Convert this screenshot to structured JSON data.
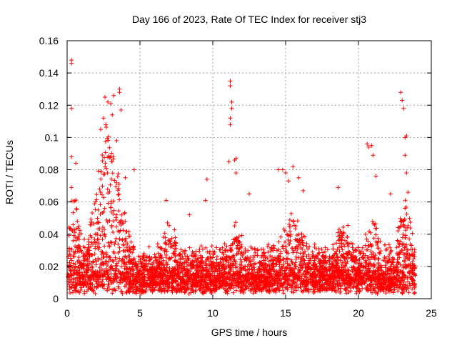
{
  "chart_data": {
    "type": "scatter",
    "title": "Day 166 of 2023, Rate Of TEC Index for receiver stj3",
    "xlabel": "GPS time / hours",
    "ylabel": "ROTI / TECUs",
    "xlim": [
      0,
      25
    ],
    "ylim": [
      0,
      0.16
    ],
    "xticks": [
      0,
      5,
      10,
      15,
      20,
      25
    ],
    "xtick_labels": [
      "0",
      "5",
      "10",
      "15",
      "20",
      "25"
    ],
    "yticks": [
      0,
      0.02,
      0.04,
      0.06,
      0.08,
      0.1,
      0.12,
      0.14,
      0.16
    ],
    "ytick_labels": [
      "0",
      "0.02",
      "0.04",
      "0.06",
      "0.08",
      "0.1",
      "0.12",
      "0.14",
      "0.16"
    ],
    "grid": true,
    "marker": "+",
    "color": "#ff0000",
    "series": [
      {
        "name": "ROTI",
        "notable_points": [
          [
            0.3,
            0.148
          ],
          [
            0.3,
            0.146
          ],
          [
            0.3,
            0.118
          ],
          [
            0.3,
            0.088
          ],
          [
            0.3,
            0.069
          ],
          [
            0.6,
            0.084
          ],
          [
            2.3,
            0.105
          ],
          [
            2.5,
            0.112
          ],
          [
            2.6,
            0.125
          ],
          [
            2.8,
            0.122
          ],
          [
            3.0,
            0.121
          ],
          [
            3.1,
            0.114
          ],
          [
            3.2,
            0.126
          ],
          [
            3.6,
            0.13
          ],
          [
            3.6,
            0.128
          ],
          [
            3.7,
            0.117
          ],
          [
            3.4,
            0.098
          ],
          [
            4.0,
            0.075
          ],
          [
            4.6,
            0.08
          ],
          [
            6.8,
            0.061
          ],
          [
            8.4,
            0.052
          ],
          [
            9.6,
            0.074
          ],
          [
            9.5,
            0.061
          ],
          [
            11.2,
            0.135
          ],
          [
            11.2,
            0.132
          ],
          [
            11.3,
            0.122
          ],
          [
            11.3,
            0.118
          ],
          [
            11.2,
            0.112
          ],
          [
            11.2,
            0.108
          ],
          [
            11.1,
            0.085
          ],
          [
            11.5,
            0.086
          ],
          [
            11.6,
            0.087
          ],
          [
            11.6,
            0.078
          ],
          [
            12.5,
            0.065
          ],
          [
            14.5,
            0.08
          ],
          [
            14.8,
            0.08
          ],
          [
            15.0,
            0.078
          ],
          [
            15.2,
            0.073
          ],
          [
            15.5,
            0.082
          ],
          [
            15.9,
            0.075
          ],
          [
            16.2,
            0.067
          ],
          [
            18.6,
            0.069
          ],
          [
            20.6,
            0.096
          ],
          [
            20.7,
            0.094
          ],
          [
            20.9,
            0.095
          ],
          [
            21.0,
            0.089
          ],
          [
            21.2,
            0.076
          ],
          [
            22.2,
            0.065
          ],
          [
            22.9,
            0.128
          ],
          [
            23.0,
            0.123
          ],
          [
            23.1,
            0.118
          ],
          [
            23.2,
            0.1
          ],
          [
            23.3,
            0.101
          ],
          [
            23.2,
            0.089
          ],
          [
            23.3,
            0.078
          ],
          [
            23.4,
            0.066
          ]
        ],
        "typical_range": [
          0.0,
          0.03
        ]
      }
    ]
  }
}
